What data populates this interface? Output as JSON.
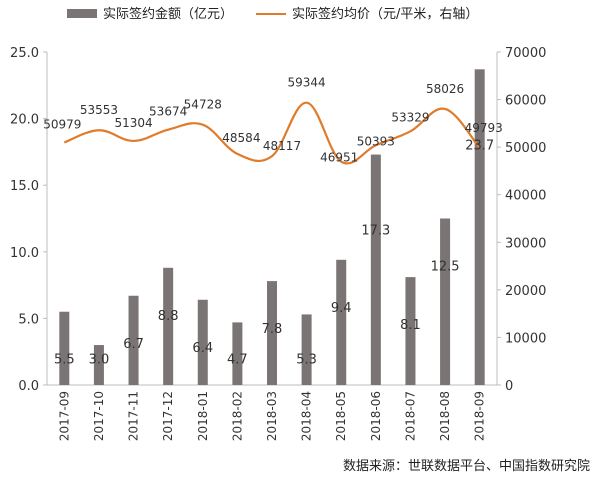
{
  "chart_data": {
    "type": "bar+line",
    "categories": [
      "2017-09",
      "2017-10",
      "2017-11",
      "2017-12",
      "2018-01",
      "2018-02",
      "2018-03",
      "2018-04",
      "2018-05",
      "2018-06",
      "2018-07",
      "2018-08",
      "2018-09"
    ],
    "series": [
      {
        "name": "实际签约金额（亿元）",
        "type": "bar",
        "axis": "left",
        "values": [
          5.5,
          3.0,
          6.7,
          8.8,
          6.4,
          4.7,
          7.8,
          5.3,
          9.4,
          17.3,
          8.1,
          12.5,
          23.7
        ],
        "labels": [
          "5.5",
          "3.0",
          "6.7",
          "8.8",
          "6.4",
          "4.7",
          "7.8",
          "5.3",
          "9.4",
          "17.3",
          "8.1",
          "12.5",
          "23.7"
        ],
        "color": "#7b7474"
      },
      {
        "name": "实际签约均价（元/平米，右轴）",
        "type": "line",
        "axis": "right",
        "values": [
          50979,
          53553,
          51304,
          53674,
          54728,
          48584,
          48117,
          59344,
          46951,
          50393,
          53329,
          58026,
          49793
        ],
        "labels": [
          "50979",
          "53553",
          "51304",
          "53674",
          "54728",
          "48584",
          "48117",
          "59344",
          "46951",
          "50393",
          "53329",
          "58026",
          "49793"
        ],
        "color": "#e07b2a"
      }
    ],
    "y_left": {
      "min": 0,
      "max": 25,
      "ticks": [
        "0.0",
        "5.0",
        "10.0",
        "15.0",
        "20.0",
        "25.0"
      ]
    },
    "y_right": {
      "min": 0,
      "max": 70000,
      "ticks": [
        "0",
        "10000",
        "20000",
        "30000",
        "40000",
        "50000",
        "60000",
        "70000"
      ]
    },
    "legend_position": "top",
    "grid": false
  },
  "source": "数据来源：世联数据平台、中国指数研究院"
}
